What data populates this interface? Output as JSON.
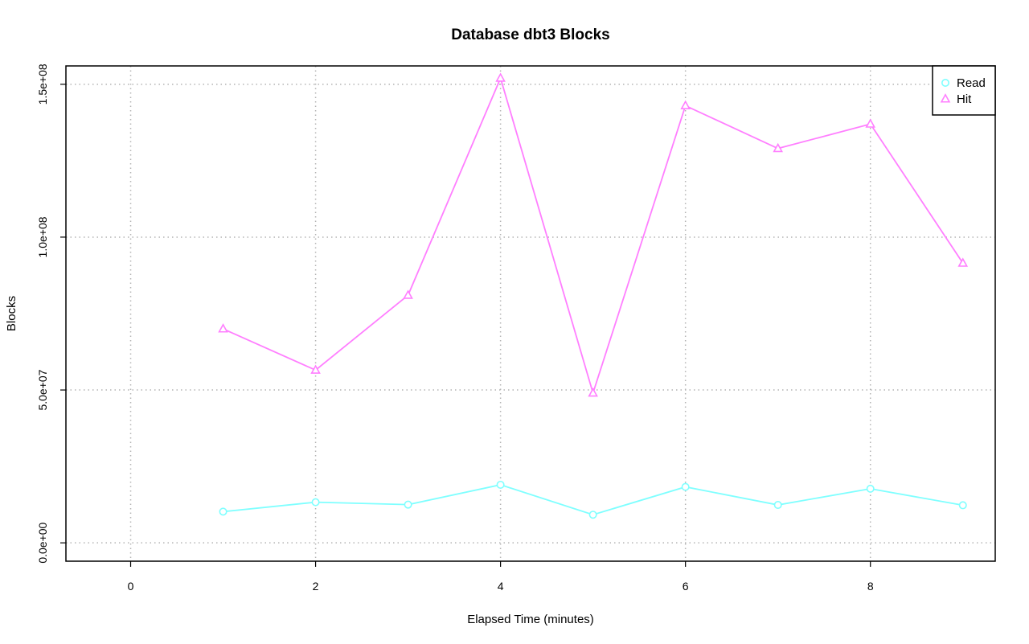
{
  "chart_data": {
    "type": "line",
    "title": "Database dbt3 Blocks",
    "xlabel": "Elapsed Time (minutes)",
    "ylabel": "Blocks",
    "xlim": [
      -0.7,
      9.35
    ],
    "ylim": [
      -6000000,
      156000000
    ],
    "x_ticks": [
      0,
      2,
      4,
      6,
      8
    ],
    "x_tick_labels": [
      "0",
      "2",
      "4",
      "6",
      "8"
    ],
    "y_ticks": [
      0,
      50000000,
      100000000,
      150000000
    ],
    "y_tick_labels": [
      "0.0e+00",
      "5.0e+07",
      "1.0e+08",
      "1.5e+08"
    ],
    "grid": true,
    "legend_position": "top-right",
    "x": [
      1,
      2,
      3,
      4,
      5,
      6,
      7,
      8,
      9
    ],
    "series": [
      {
        "name": "Read",
        "marker": "circle",
        "color": "#7fffff",
        "values": [
          10200000,
          13300000,
          12500000,
          19000000,
          9200000,
          18300000,
          12400000,
          17700000,
          12300000
        ]
      },
      {
        "name": "Hit",
        "marker": "triangle",
        "color": "#ff7fff",
        "values": [
          70000000,
          56500000,
          81000000,
          152000000,
          49000000,
          143000000,
          129000000,
          137000000,
          91500000
        ]
      }
    ]
  }
}
